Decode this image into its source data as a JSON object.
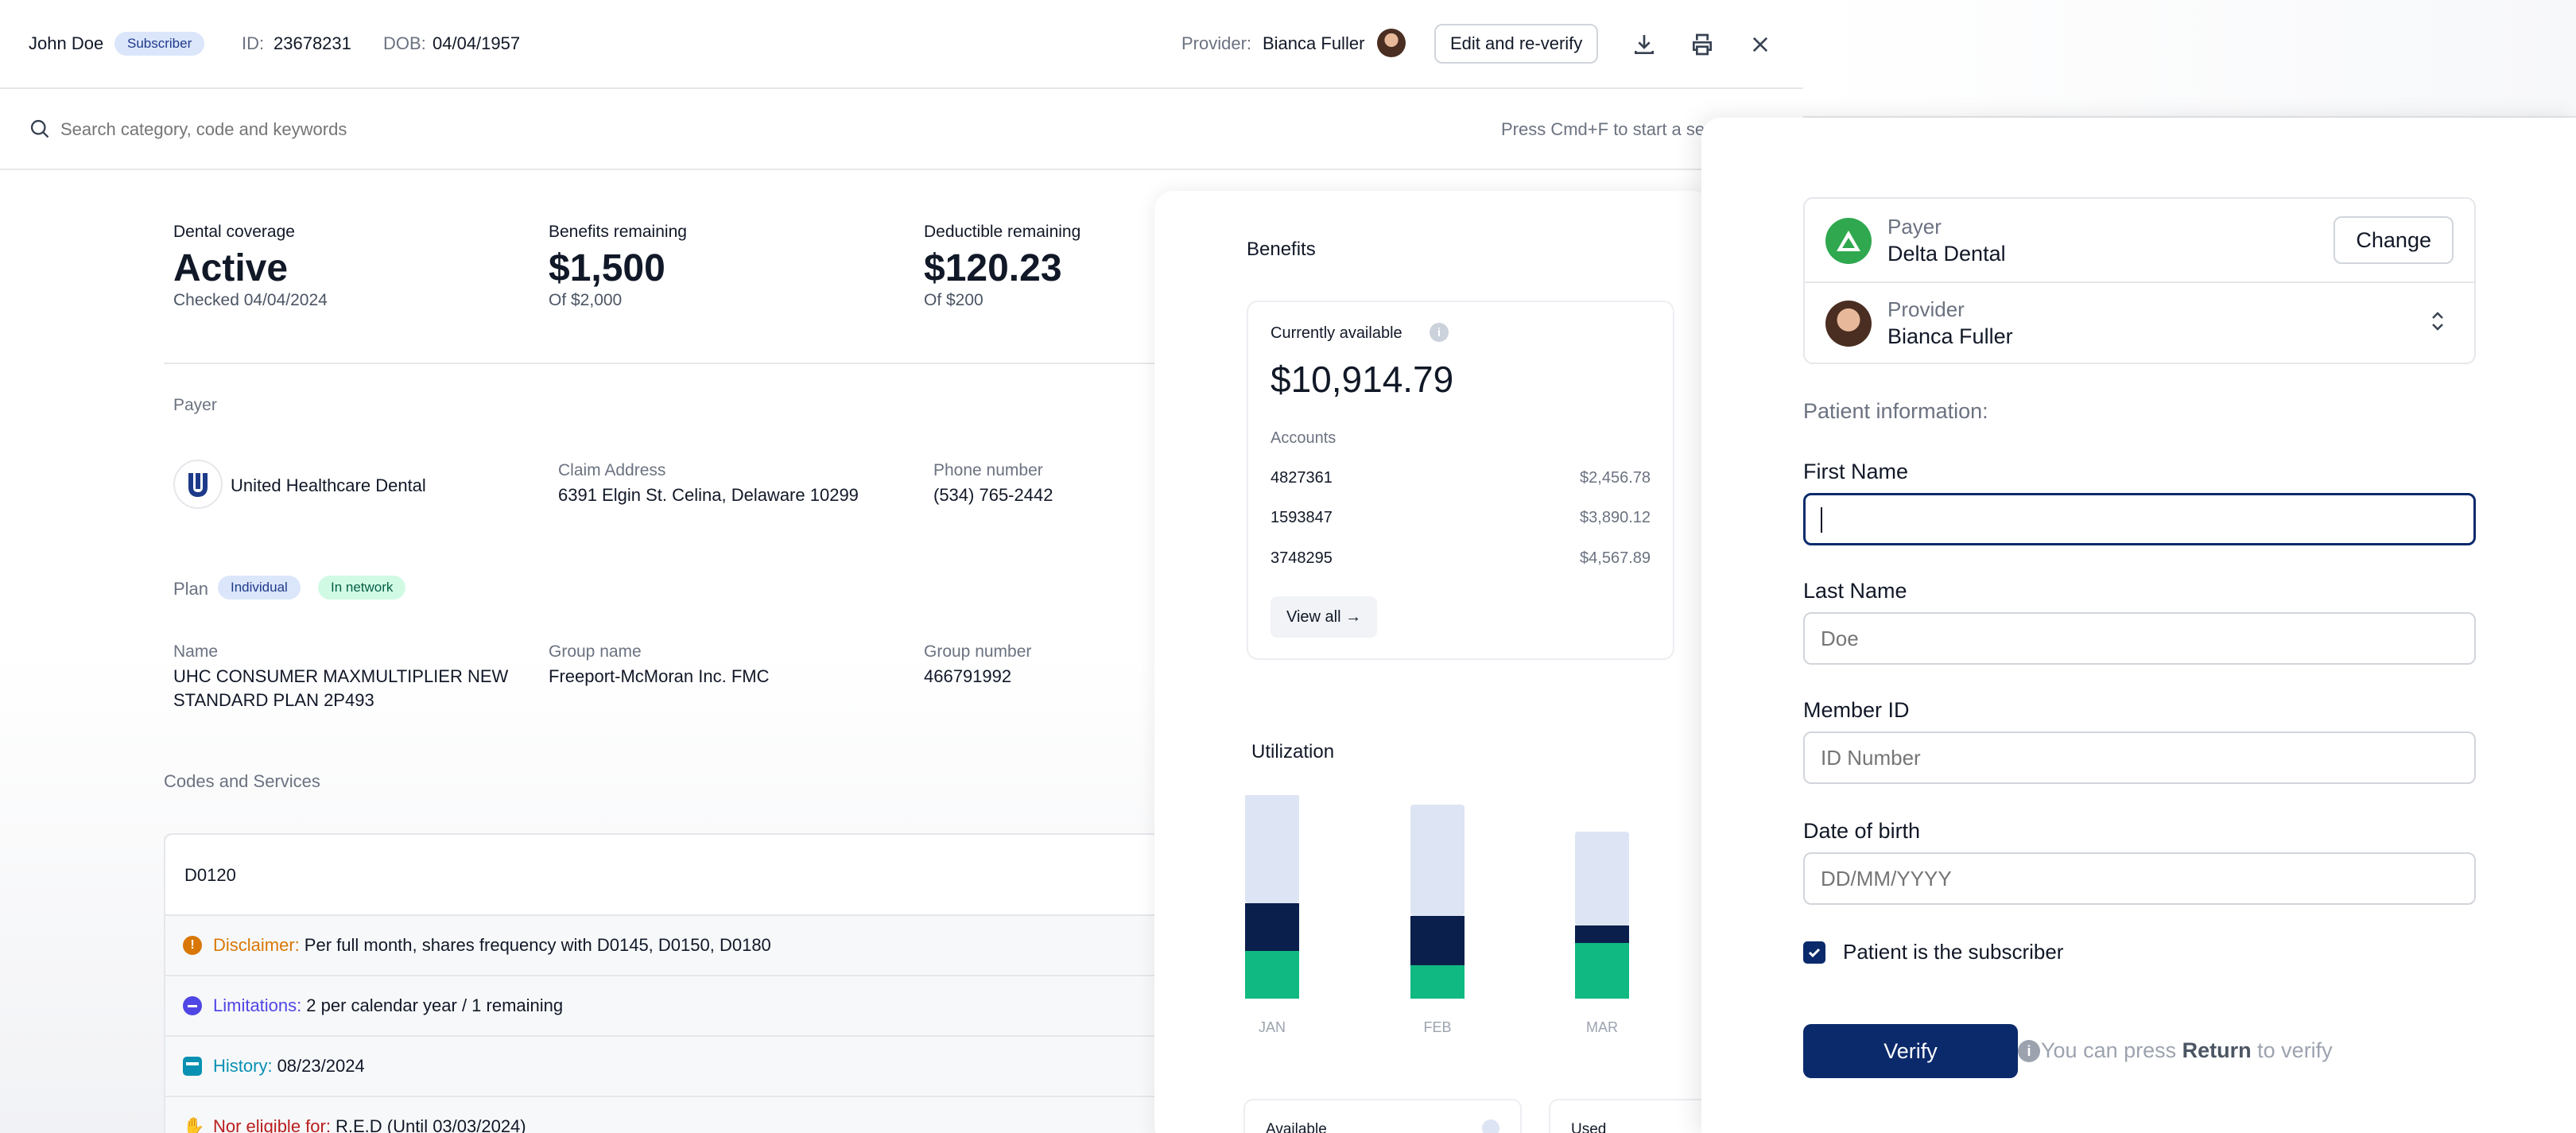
{
  "header": {
    "patient_name": "John Doe",
    "subscriber_badge": "Subscriber",
    "id_label": "ID:",
    "id_value": "23678231",
    "dob_label": "DOB:",
    "dob_value": "04/04/1957",
    "provider_label": "Provider:",
    "provider_name": "Bianca Fuller",
    "edit_button": "Edit and re-verify"
  },
  "search": {
    "placeholder": "Search category, code and keywords",
    "hint": "Press Cmd+F to start a se"
  },
  "summary": [
    {
      "label": "Dental coverage",
      "value": "Active",
      "sub": "Checked 04/04/2024"
    },
    {
      "label": "Benefits remaining",
      "value": "$1,500",
      "sub": "Of $2,000"
    },
    {
      "label": "Deductible remaining",
      "value": "$120.23",
      "sub": "Of $200"
    }
  ],
  "payer": {
    "section_label": "Payer",
    "name": "United Healthcare Dental",
    "claim_label": "Claim Address",
    "claim_value": "6391 Elgin St. Celina, Delaware 10299",
    "phone_label": "Phone number",
    "phone_value": "(534) 765-2442"
  },
  "plan": {
    "section_label": "Plan",
    "badge_1": "Individual",
    "badge_2": "In network",
    "name_label": "Name",
    "name_line1": "UHC CONSUMER MAXMULTIPLIER NEW",
    "name_line2": "STANDARD PLAN 2P493",
    "group_name_label": "Group name",
    "group_name_value": "Freeport-McMoran Inc. FMC",
    "group_number_label": "Group number",
    "group_number_value": "466791992"
  },
  "codes": {
    "section_label": "Codes and Services",
    "code": "D0120",
    "rows": [
      {
        "label": "Disclaimer:",
        "text": "Per full month, shares frequency with D0145, D0150, D0180",
        "color": "#d97706"
      },
      {
        "label": "Limitations:",
        "text": "2 per calendar year / 1 remaining",
        "color": "#4f46e5"
      },
      {
        "label": "History:",
        "text": "08/23/2024",
        "color": "#0891b2"
      },
      {
        "label": "Nor eligible for:",
        "text": "R.E.D (Until 03/03/2024)",
        "color": "#b91c1c"
      }
    ]
  },
  "benefits": {
    "title": "Benefits",
    "available_label": "Currently available",
    "available_value": "$10,914.79",
    "accounts_label": "Accounts",
    "accounts": [
      {
        "id": "4827361",
        "amount": "$2,456.78"
      },
      {
        "id": "1593847",
        "amount": "$3,890.12"
      },
      {
        "id": "3748295",
        "amount": "$4,567.89"
      }
    ],
    "view_all": "View all →"
  },
  "utilization": {
    "title": "Utilization",
    "legend_1": "Available",
    "legend_2": "Used"
  },
  "chart_data": {
    "type": "bar",
    "categories": [
      "JAN",
      "FEB",
      "MAR"
    ],
    "series": [
      {
        "values": [
          30,
          21,
          35
        ],
        "color": "#10b981"
      },
      {
        "values": [
          30,
          31,
          11
        ],
        "color": "#0b1f4d"
      },
      {
        "values": [
          75,
          70,
          59
        ],
        "color": "#dde4f3"
      }
    ],
    "ylim": [
      0,
      135
    ]
  },
  "verify_panel": {
    "payer_label": "Payer",
    "payer_value": "Delta Dental",
    "change_button": "Change",
    "provider_label": "Provider",
    "provider_value": "Bianca Fuller",
    "patient_info_label": "Patient information:",
    "first_name_label": "First Name",
    "first_name_value": "",
    "last_name_label": "Last Name",
    "last_name_placeholder": "Doe",
    "member_id_label": "Member ID",
    "member_id_placeholder": "ID Number",
    "dob_label": "Date of birth",
    "dob_placeholder": "DD/MM/YYYY",
    "subscriber_checkbox_label": "Patient is the subscriber",
    "subscriber_checked": true,
    "verify_button": "Verify",
    "hint_prefix": "You can press",
    "hint_key": "Return",
    "hint_suffix": "to verify"
  },
  "colors": {
    "navy": "#0b2a6b",
    "green": "#10b981",
    "blue_badge_bg": "#dbe6fb",
    "green_badge_bg": "#d1fae5"
  }
}
